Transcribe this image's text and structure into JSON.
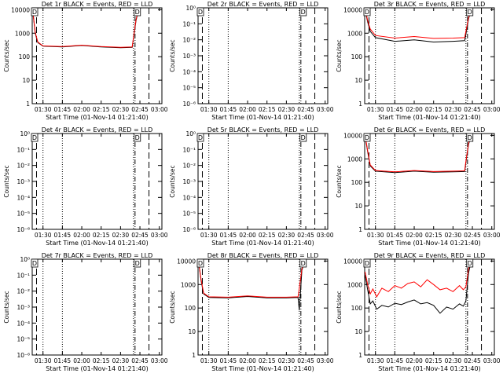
{
  "chart_data": [
    {
      "id": 1,
      "type": "line",
      "title": "Det 1r BLACK = Events, RED = LLD",
      "xlabel": "Start Time (01-Nov-14 01:21:40)",
      "ylabel": "Counts/sec",
      "xticks": [
        "01:30",
        "01:45",
        "02:00",
        "02:15",
        "02:30",
        "02:45",
        "03:00"
      ],
      "yscale": "log",
      "yticks": [
        "1",
        "10",
        "100",
        "1000",
        "10000"
      ],
      "ylim": [
        1,
        12000
      ],
      "vlines": {
        "dotted": [
          "01:30",
          "01:45",
          "02:40"
        ],
        "dashdot": [
          "02:40"
        ],
        "longdash": [
          "02:52"
        ]
      },
      "markers": [
        {
          "label": "D",
          "x": "01:21",
          "y": 9000
        },
        {
          "label": "D",
          "x": "02:43",
          "y": 9000
        }
      ],
      "series": [
        {
          "color": "#000000",
          "x": [
            "01:22",
            "01:24",
            "01:26",
            "01:30",
            "01:45",
            "02:00",
            "02:15",
            "02:30",
            "02:39",
            "02:40",
            "02:42",
            "02:44"
          ],
          "values": [
            10000,
            1000,
            400,
            280,
            260,
            300,
            260,
            240,
            250,
            600,
            3500,
            10000
          ]
        },
        {
          "color": "#ff0000",
          "x": [
            "01:22",
            "01:24",
            "01:26",
            "01:30",
            "01:45",
            "02:00",
            "02:15",
            "02:30",
            "02:39",
            "02:40",
            "02:42",
            "02:44"
          ],
          "values": [
            10500,
            1100,
            420,
            290,
            270,
            310,
            270,
            250,
            260,
            650,
            3800,
            10500
          ]
        }
      ]
    },
    {
      "id": 2,
      "type": "line",
      "title": "Det 2r BLACK = Events, RED = LLD",
      "xlabel": "Start Time (01-Nov-14 01:21:40)",
      "ylabel": "Counts/sec",
      "xticks": [
        "01:30",
        "01:45",
        "02:00",
        "02:15",
        "02:30",
        "02:45",
        "03:00"
      ],
      "yscale": "log",
      "yticks": [
        "10⁰",
        "10⁻¹",
        "10⁻²",
        "10⁻³",
        "10⁻⁴",
        "10⁻⁵",
        "10⁻⁶"
      ],
      "ylim": [
        1e-06,
        1
      ],
      "vlines": {
        "dotted": [
          "01:30",
          "01:45",
          "02:40"
        ],
        "dashdot": [
          "02:40"
        ],
        "longdash": [
          "02:52"
        ]
      },
      "markers": [
        {
          "label": "D",
          "x": "01:21",
          "y": 1.5
        },
        {
          "label": "D",
          "x": "02:43",
          "y": 1.5
        }
      ],
      "series": []
    },
    {
      "id": 3,
      "type": "line",
      "title": "Det 3r BLACK = Events, RED = LLD",
      "xlabel": "Start Time (01-Nov-14 01:21:40)",
      "ylabel": "Counts/sec",
      "xticks": [
        "01:30",
        "01:45",
        "02:00",
        "02:15",
        "02:30",
        "02:45",
        "03:00"
      ],
      "yscale": "log",
      "yticks": [
        "1",
        "10",
        "100",
        "1000",
        "10000"
      ],
      "ylim": [
        1,
        12000
      ],
      "vlines": {
        "dotted": [
          "01:30",
          "01:45",
          "02:40"
        ],
        "dashdot": [
          "02:40"
        ],
        "longdash": [
          "02:52"
        ]
      },
      "markers": [
        {
          "label": "D",
          "x": "01:21",
          "y": 9000
        },
        {
          "label": "D",
          "x": "02:43",
          "y": 9000
        }
      ],
      "series": [
        {
          "color": "#000000",
          "x": [
            "01:22",
            "01:24",
            "01:26",
            "01:30",
            "01:45",
            "02:00",
            "02:15",
            "02:30",
            "02:39",
            "02:40",
            "02:42",
            "02:44"
          ],
          "values": [
            10000,
            3000,
            1200,
            650,
            450,
            520,
            420,
            450,
            480,
            900,
            4000,
            10000
          ]
        },
        {
          "color": "#ff0000",
          "x": [
            "01:22",
            "01:24",
            "01:26",
            "01:30",
            "01:45",
            "02:00",
            "02:15",
            "02:30",
            "02:39",
            "02:40",
            "02:42",
            "02:44"
          ],
          "values": [
            10500,
            3500,
            1500,
            800,
            620,
            720,
            600,
            620,
            650,
            1200,
            4500,
            10500
          ]
        }
      ]
    },
    {
      "id": 4,
      "type": "line",
      "title": "Det 4r BLACK = Events, RED = LLD",
      "xlabel": "Start Time (01-Nov-14 01:21:40)",
      "ylabel": "Counts/sec",
      "xticks": [
        "01:30",
        "01:45",
        "02:00",
        "02:15",
        "02:30",
        "02:45",
        "03:00"
      ],
      "yscale": "log",
      "yticks": [
        "10⁰",
        "10⁻¹",
        "10⁻²",
        "10⁻³",
        "10⁻⁴",
        "10⁻⁵",
        "10⁻⁶"
      ],
      "ylim": [
        1e-06,
        1
      ],
      "vlines": {
        "dotted": [
          "01:30",
          "01:45",
          "02:40"
        ],
        "dashdot": [
          "02:40"
        ],
        "longdash": [
          "02:52"
        ]
      },
      "markers": [
        {
          "label": "D",
          "x": "01:21",
          "y": 1.5
        },
        {
          "label": "D",
          "x": "02:43",
          "y": 1.5
        }
      ],
      "series": []
    },
    {
      "id": 5,
      "type": "line",
      "title": "Det 5r BLACK = Events, RED = LLD",
      "xlabel": "Start Time (01-Nov-14 01:21:40)",
      "ylabel": "Counts/sec",
      "xticks": [
        "01:30",
        "01:45",
        "02:00",
        "02:15",
        "02:30",
        "02:45",
        "03:00"
      ],
      "yscale": "log",
      "yticks": [
        "10⁰",
        "10⁻¹",
        "10⁻²",
        "10⁻³",
        "10⁻⁴",
        "10⁻⁵",
        "10⁻⁶"
      ],
      "ylim": [
        1e-06,
        1
      ],
      "vlines": {
        "dotted": [
          "01:30",
          "01:45",
          "02:40"
        ],
        "dashdot": [
          "02:40"
        ],
        "longdash": [
          "02:52"
        ]
      },
      "markers": [
        {
          "label": "D",
          "x": "01:21",
          "y": 1.5
        },
        {
          "label": "D",
          "x": "02:43",
          "y": 1.5
        }
      ],
      "series": []
    },
    {
      "id": 6,
      "type": "line",
      "title": "Det 6r BLACK = Events, RED = LLD",
      "xlabel": "Start Time (01-Nov-14 01:21:40)",
      "ylabel": "Counts/sec",
      "xticks": [
        "01:30",
        "01:45",
        "02:00",
        "02:15",
        "02:30",
        "02:45",
        "03:00"
      ],
      "yscale": "log",
      "yticks": [
        "1",
        "10",
        "100",
        "1000",
        "10000"
      ],
      "ylim": [
        1,
        12000
      ],
      "vlines": {
        "dotted": [
          "01:30",
          "01:45",
          "02:40"
        ],
        "dashdot": [
          "02:40"
        ],
        "longdash": [
          "02:52"
        ]
      },
      "markers": [
        {
          "label": "D",
          "x": "01:21",
          "y": 9000
        },
        {
          "label": "D",
          "x": "02:43",
          "y": 9000
        }
      ],
      "series": [
        {
          "color": "#000000",
          "x": [
            "01:22",
            "01:24",
            "01:26",
            "01:30",
            "01:45",
            "02:00",
            "02:15",
            "02:30",
            "02:39",
            "02:40",
            "02:42",
            "02:44"
          ],
          "values": [
            10000,
            2000,
            500,
            300,
            260,
            300,
            270,
            280,
            290,
            700,
            4000,
            10000
          ]
        },
        {
          "color": "#ff0000",
          "x": [
            "01:22",
            "01:24",
            "01:26",
            "01:30",
            "01:45",
            "02:00",
            "02:15",
            "02:30",
            "02:39",
            "02:40",
            "02:42",
            "02:44"
          ],
          "values": [
            10500,
            2200,
            550,
            320,
            280,
            320,
            290,
            300,
            310,
            800,
            4500,
            10500
          ]
        }
      ]
    },
    {
      "id": 7,
      "type": "line",
      "title": "Det 7r BLACK = Events, RED = LLD",
      "xlabel": "Start Time (01-Nov-14 01:21:40)",
      "ylabel": "Counts/sec",
      "xticks": [
        "01:30",
        "01:45",
        "02:00",
        "02:15",
        "02:30",
        "02:45",
        "03:00"
      ],
      "yscale": "log",
      "yticks": [
        "10⁰",
        "10⁻¹",
        "10⁻²",
        "10⁻³",
        "10⁻⁴",
        "10⁻⁵",
        "10⁻⁶"
      ],
      "ylim": [
        1e-06,
        1
      ],
      "vlines": {
        "dotted": [
          "01:30",
          "01:45",
          "02:40"
        ],
        "dashdot": [
          "02:40"
        ],
        "longdash": [
          "02:52"
        ]
      },
      "markers": [
        {
          "label": "D",
          "x": "01:21",
          "y": 1.5
        },
        {
          "label": "D",
          "x": "02:43",
          "y": 1.5
        }
      ],
      "series": []
    },
    {
      "id": 8,
      "type": "line",
      "title": "Det 8r BLACK = Events, RED = LLD",
      "xlabel": "Start Time (01-Nov-14 01:21:40)",
      "ylabel": "Counts/sec",
      "xticks": [
        "01:30",
        "01:45",
        "02:00",
        "02:15",
        "02:30",
        "02:45",
        "03:00"
      ],
      "yscale": "log",
      "yticks": [
        "1",
        "10",
        "100",
        "1000",
        "10000"
      ],
      "ylim": [
        1,
        12000
      ],
      "vlines": {
        "dotted": [
          "01:30",
          "01:45",
          "02:40"
        ],
        "dashdot": [
          "02:40"
        ],
        "longdash": [
          "02:52"
        ]
      },
      "markers": [
        {
          "label": "D",
          "x": "01:21",
          "y": 9000
        },
        {
          "label": "D",
          "x": "02:43",
          "y": 9000
        }
      ],
      "series": [
        {
          "color": "#000000",
          "x": [
            "01:22",
            "01:24",
            "01:26",
            "01:30",
            "01:45",
            "02:00",
            "02:15",
            "02:30",
            "02:39",
            "02:40",
            "02:42",
            "02:44"
          ],
          "values": [
            10000,
            1500,
            400,
            280,
            270,
            310,
            270,
            270,
            280,
            80,
            4000,
            10000
          ]
        },
        {
          "color": "#ff0000",
          "x": [
            "01:22",
            "01:24",
            "01:26",
            "01:30",
            "01:45",
            "02:00",
            "02:15",
            "02:30",
            "02:39",
            "02:40",
            "02:42",
            "02:44"
          ],
          "values": [
            10500,
            1700,
            430,
            300,
            290,
            330,
            290,
            290,
            300,
            700,
            4500,
            10500
          ]
        }
      ]
    },
    {
      "id": 9,
      "type": "line",
      "title": "Det 9r BLACK = Events, RED = LLD",
      "xlabel": "Start Time (01-Nov-14 01:21:40)",
      "ylabel": "Counts/sec",
      "xticks": [
        "01:30",
        "01:45",
        "02:00",
        "02:15",
        "02:30",
        "02:45",
        "03:00"
      ],
      "yscale": "log",
      "yticks": [
        "1",
        "10",
        "100",
        "1000",
        "10000"
      ],
      "ylim": [
        1,
        12000
      ],
      "vlines": {
        "dotted": [
          "01:30",
          "01:45",
          "02:40"
        ],
        "dashdot": [
          "02:40"
        ],
        "longdash": [
          "02:52"
        ]
      },
      "markers": [
        {
          "label": "D",
          "x": "01:21",
          "y": 9000
        },
        {
          "label": "D",
          "x": "02:43",
          "y": 9000
        }
      ],
      "series": [
        {
          "color": "#000000",
          "x": [
            "01:22",
            "01:24",
            "01:26",
            "01:28",
            "01:31",
            "01:35",
            "01:40",
            "01:45",
            "01:50",
            "01:55",
            "02:00",
            "02:05",
            "02:10",
            "02:15",
            "02:20",
            "02:25",
            "02:30",
            "02:35",
            "02:38",
            "02:40",
            "02:42",
            "02:44"
          ],
          "values": [
            2500,
            600,
            150,
            200,
            90,
            130,
            110,
            160,
            140,
            180,
            220,
            150,
            170,
            130,
            60,
            110,
            90,
            150,
            120,
            200,
            3000,
            10000
          ]
        },
        {
          "color": "#ff0000",
          "x": [
            "01:22",
            "01:24",
            "01:26",
            "01:28",
            "01:31",
            "01:35",
            "01:40",
            "01:45",
            "01:50",
            "01:55",
            "02:00",
            "02:05",
            "02:10",
            "02:15",
            "02:20",
            "02:25",
            "02:30",
            "02:35",
            "02:38",
            "02:40",
            "02:42",
            "02:44"
          ],
          "values": [
            3500,
            1000,
            400,
            650,
            300,
            700,
            500,
            900,
            700,
            1100,
            1300,
            800,
            1600,
            1000,
            600,
            700,
            500,
            900,
            600,
            800,
            4500,
            10500
          ]
        }
      ]
    }
  ]
}
